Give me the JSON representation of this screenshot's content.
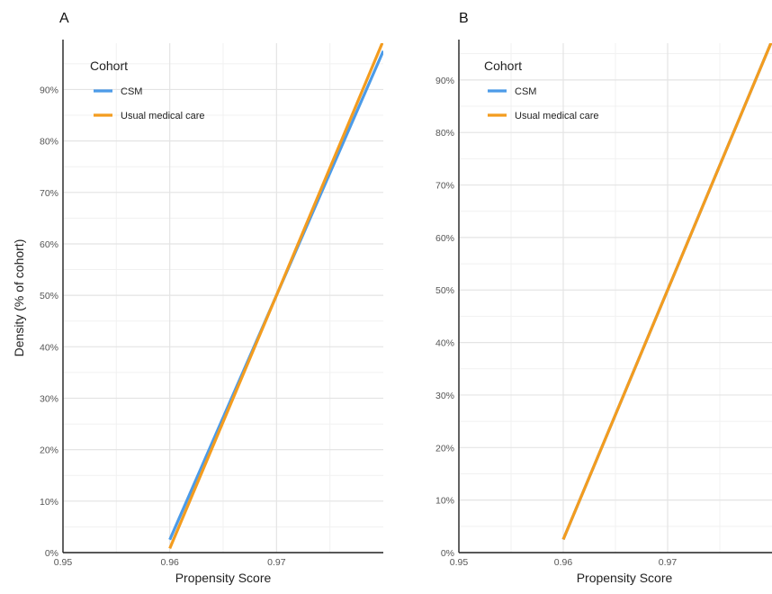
{
  "chart_data": [
    {
      "panel_label": "A",
      "type": "line",
      "xlabel": "Propensity Score",
      "ylabel": "Density (% of cohort)",
      "xlim": [
        0.95,
        0.98
      ],
      "ylim": [
        0,
        0.99
      ],
      "x_ticks": [
        0.95,
        0.96,
        0.97
      ],
      "x_tick_labels": [
        "0.95",
        "0.96",
        "0.97"
      ],
      "y_ticks": [
        0,
        0.1,
        0.2,
        0.3,
        0.4,
        0.5,
        0.6,
        0.7,
        0.8,
        0.9
      ],
      "y_tick_labels": [
        "0%",
        "10%",
        "20%",
        "30%",
        "40%",
        "50%",
        "60%",
        "70%",
        "80%",
        "90%"
      ],
      "grid": true,
      "legend": {
        "title": "Cohort",
        "position": "top-left"
      },
      "series": [
        {
          "name": "CSM",
          "color": "#4c9be8",
          "x": [
            0.96,
            0.97,
            0.98
          ],
          "y": [
            0.025,
            0.5,
            0.975
          ]
        },
        {
          "name": "Usual medical care",
          "color": "#f39c1f",
          "x": [
            0.96,
            0.97,
            0.98
          ],
          "y": [
            0.008,
            0.5,
            0.995
          ]
        }
      ]
    },
    {
      "panel_label": "B",
      "type": "line",
      "xlabel": "Propensity Score",
      "ylabel": "",
      "xlim": [
        0.95,
        0.98
      ],
      "ylim": [
        0,
        0.97
      ],
      "x_ticks": [
        0.95,
        0.96,
        0.97
      ],
      "x_tick_labels": [
        "0.95",
        "0.96",
        "0.97"
      ],
      "y_ticks": [
        0,
        0.1,
        0.2,
        0.3,
        0.4,
        0.5,
        0.6,
        0.7,
        0.8,
        0.9
      ],
      "y_tick_labels": [
        "0%",
        "10%",
        "20%",
        "30%",
        "40%",
        "50%",
        "60%",
        "70%",
        "80%",
        "90%"
      ],
      "grid": true,
      "legend": {
        "title": "Cohort",
        "position": "top-left"
      },
      "series": [
        {
          "name": "CSM",
          "color": "#4c9be8",
          "x": [
            0.96,
            0.97,
            0.98
          ],
          "y": [
            0.025,
            0.5,
            0.975
          ]
        },
        {
          "name": "Usual medical care",
          "color": "#f39c1f",
          "x": [
            0.96,
            0.97,
            0.98
          ],
          "y": [
            0.025,
            0.5,
            0.975
          ]
        }
      ]
    }
  ]
}
